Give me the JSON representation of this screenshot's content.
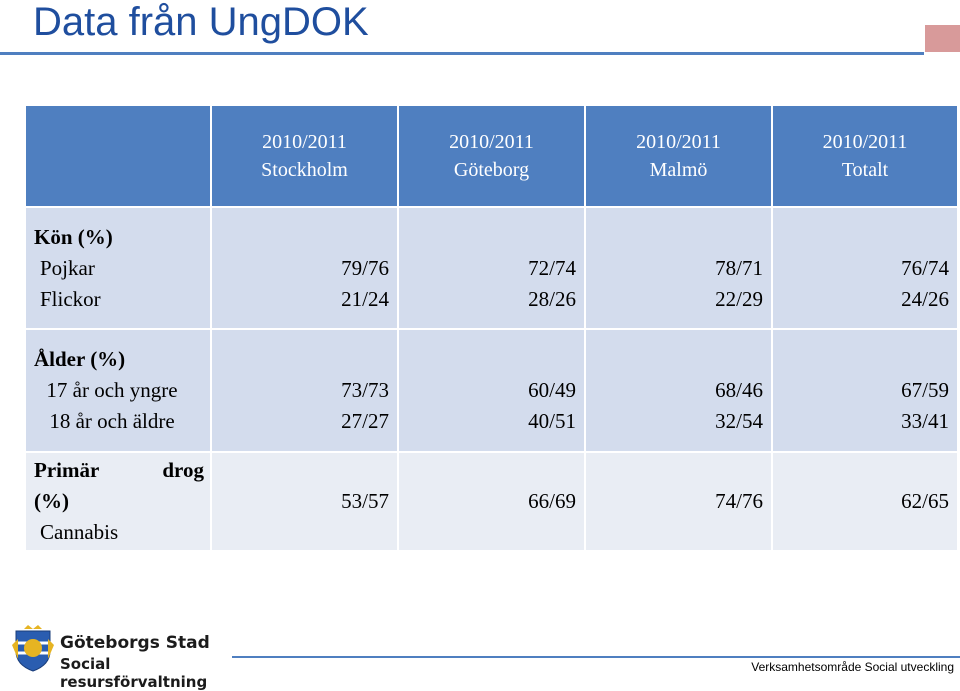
{
  "title": "Data från UngDOK",
  "colors": {
    "accent": "#4f7fc0",
    "title": "#1f4e9e",
    "cell": "#d3dced",
    "corner": "#d89a9a"
  },
  "table": {
    "headers": [
      {
        "line1": "2010/2011",
        "line2": "Stockholm"
      },
      {
        "line1": "2010/2011",
        "line2": "Göteborg"
      },
      {
        "line1": "2010/2011",
        "line2": "Malmö"
      },
      {
        "line1": "2010/2011",
        "line2": "Totalt"
      }
    ],
    "rows": [
      {
        "heading": "Kön (%)",
        "labels": [
          "Pojkar",
          "Flickor"
        ],
        "values": [
          [
            "79/76",
            "21/24"
          ],
          [
            "72/74",
            "28/26"
          ],
          [
            "78/71",
            "22/29"
          ],
          [
            "76/74",
            "24/26"
          ]
        ]
      },
      {
        "heading": "Ålder (%)",
        "labels": [
          "17 år och yngre",
          "18 år och äldre"
        ],
        "values": [
          [
            "73/73",
            "27/27"
          ],
          [
            "60/49",
            "40/51"
          ],
          [
            "68/46",
            "32/54"
          ],
          [
            "67/59",
            "33/41"
          ]
        ]
      },
      {
        "heading_a": "Primär",
        "heading_b": "drog",
        "heading_c": "(%)",
        "labels": [
          "Cannabis"
        ],
        "values": [
          "53/57",
          "66/69",
          "74/76",
          "62/65"
        ]
      }
    ]
  },
  "footer": {
    "logo_line1": "Göteborgs Stad",
    "logo_line2": "Social resursförvaltning",
    "text": "Verksamhetsområde Social utveckling"
  }
}
